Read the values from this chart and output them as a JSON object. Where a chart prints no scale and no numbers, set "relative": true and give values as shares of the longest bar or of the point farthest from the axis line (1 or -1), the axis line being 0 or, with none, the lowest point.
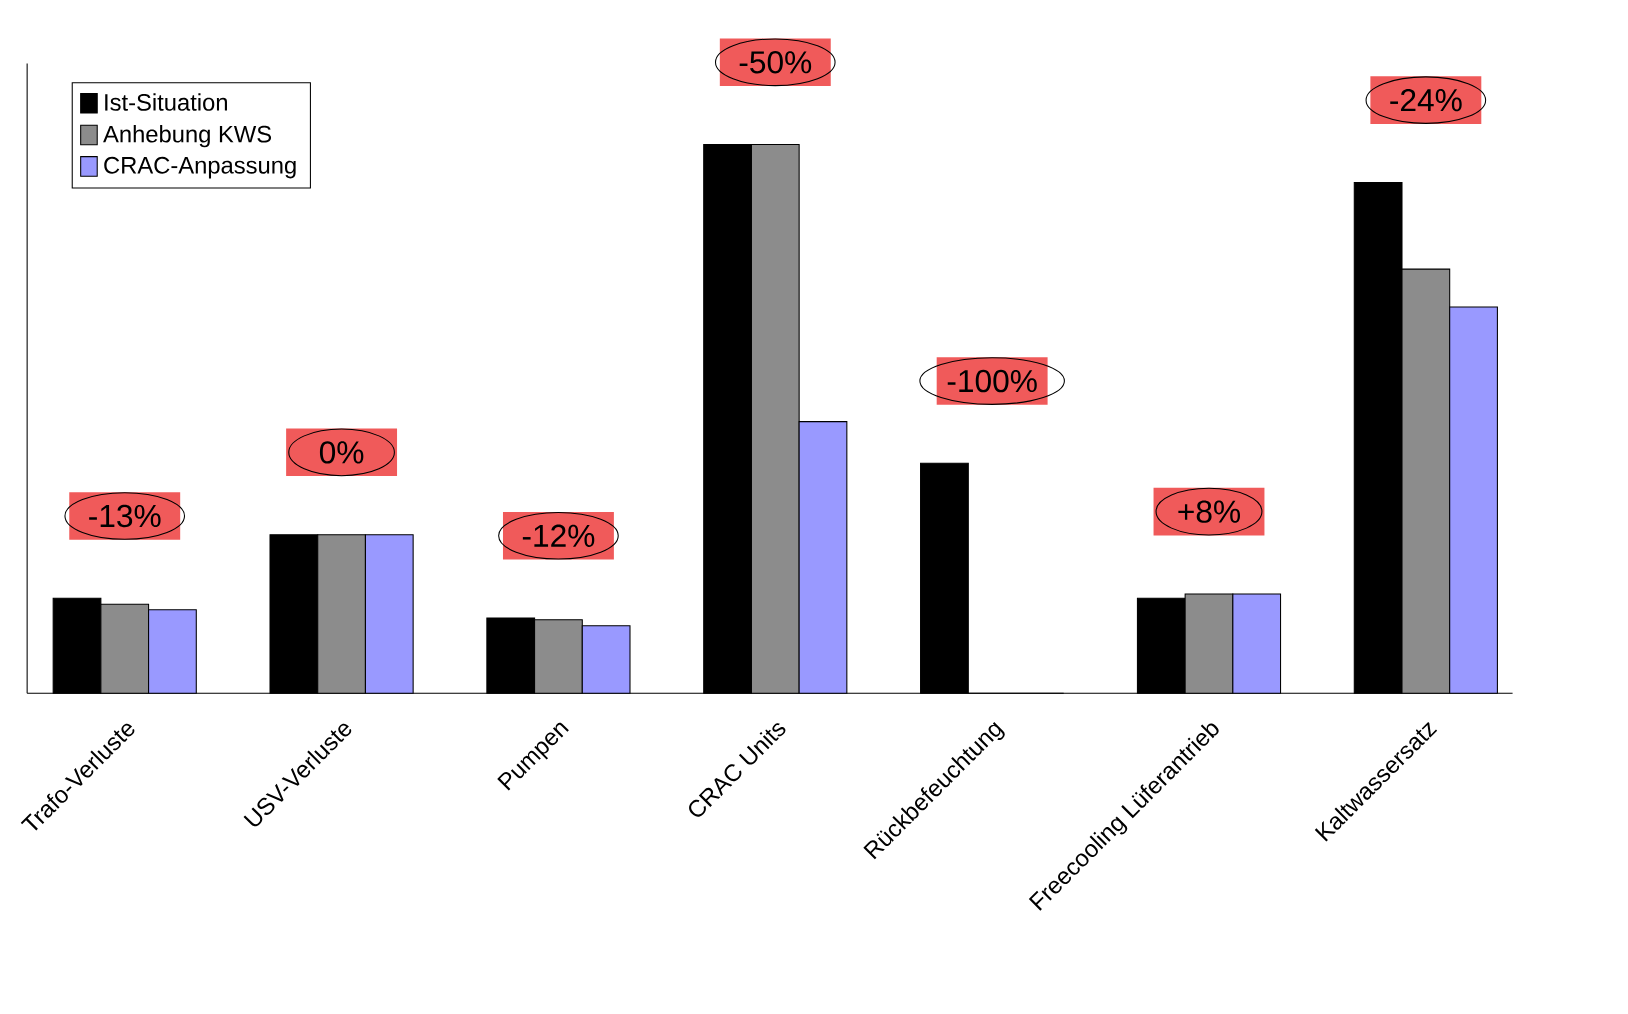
{
  "chart_data": {
    "type": "bar",
    "relative": true,
    "legend": "top left",
    "categories": [
      "Trafo-Verluste",
      "USV-Verluste",
      "Pumpen",
      "CRAC Units",
      "Rückbefeuchtung",
      "Freecooling Lüferantrieb",
      "Kaltwassersatz"
    ],
    "series": [
      {
        "name": "Ist-Situation",
        "color": "#000000",
        "values": [
          0.173,
          0.289,
          0.137,
          1,
          0.419,
          0.173,
          0.931
        ]
      },
      {
        "name": "Anhebung KWS",
        "color": "#8c8c8c",
        "values": [
          0.162,
          0.289,
          0.134,
          1,
          0,
          0.181,
          0.773
        ]
      },
      {
        "name": "CRAC-Anpassung",
        "color": "#9999ff",
        "values": [
          0.152,
          0.289,
          0.123,
          0.495,
          0,
          0.181,
          0.704
        ]
      }
    ],
    "annotations": [
      "-13%",
      "0%",
      "-12%",
      "-50%",
      "-100%",
      "+8%",
      "-24%"
    ]
  }
}
